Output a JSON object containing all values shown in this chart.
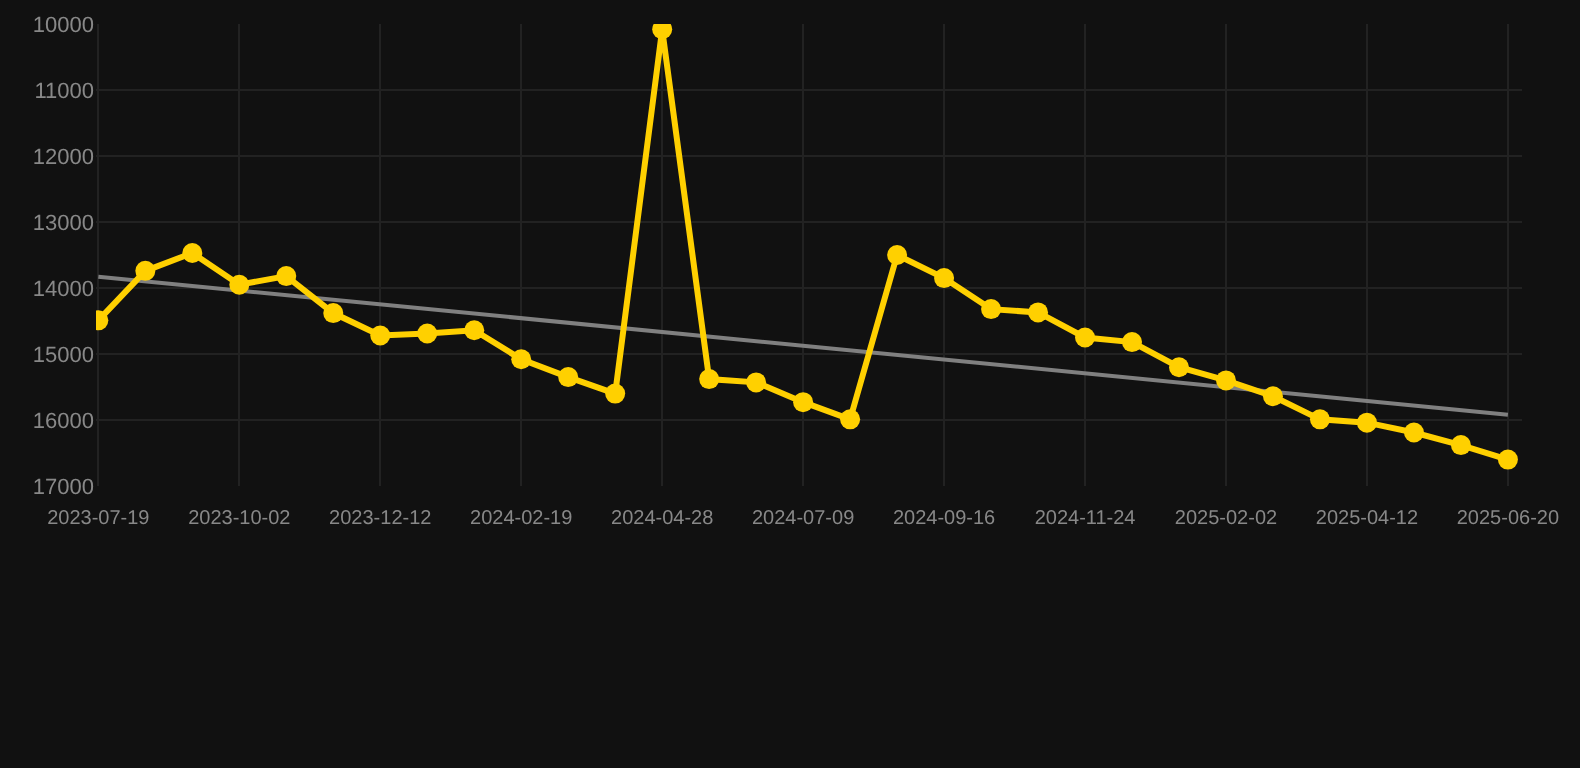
{
  "chart_data": {
    "type": "line",
    "categories": [
      "2023-07-19",
      null,
      null,
      "2023-10-02",
      null,
      null,
      "2023-12-12",
      null,
      null,
      "2024-02-19",
      null,
      null,
      "2024-04-28",
      null,
      null,
      "2024-07-09",
      null,
      null,
      "2024-09-16",
      null,
      null,
      "2024-11-24",
      null,
      null,
      "2025-02-02",
      null,
      null,
      "2025-04-12",
      null,
      null,
      "2025-06-20"
    ],
    "series": [
      {
        "color": "#ffd000",
        "marker": "circle",
        "values": [
          14490,
          13740,
          13470,
          13950,
          13820,
          14380,
          14720,
          14690,
          14640,
          15080,
          15350,
          15600,
          10080,
          15380,
          15430,
          15730,
          15990,
          13500,
          13850,
          14320,
          14370,
          14750,
          14820,
          15200,
          15400,
          15640,
          15990,
          16040,
          16190,
          16380,
          16600
        ]
      },
      {
        "color": "#808080",
        "marker": "none",
        "values": [
          13830,
          null,
          null,
          null,
          null,
          null,
          null,
          null,
          null,
          null,
          null,
          null,
          null,
          null,
          null,
          null,
          null,
          null,
          null,
          null,
          null,
          null,
          null,
          null,
          null,
          null,
          null,
          null,
          null,
          null,
          15920
        ]
      }
    ],
    "ylim": [
      17000,
      10000
    ],
    "yticks": [
      10000,
      11000,
      12000,
      13000,
      14000,
      15000,
      16000,
      17000
    ],
    "grid": true
  }
}
